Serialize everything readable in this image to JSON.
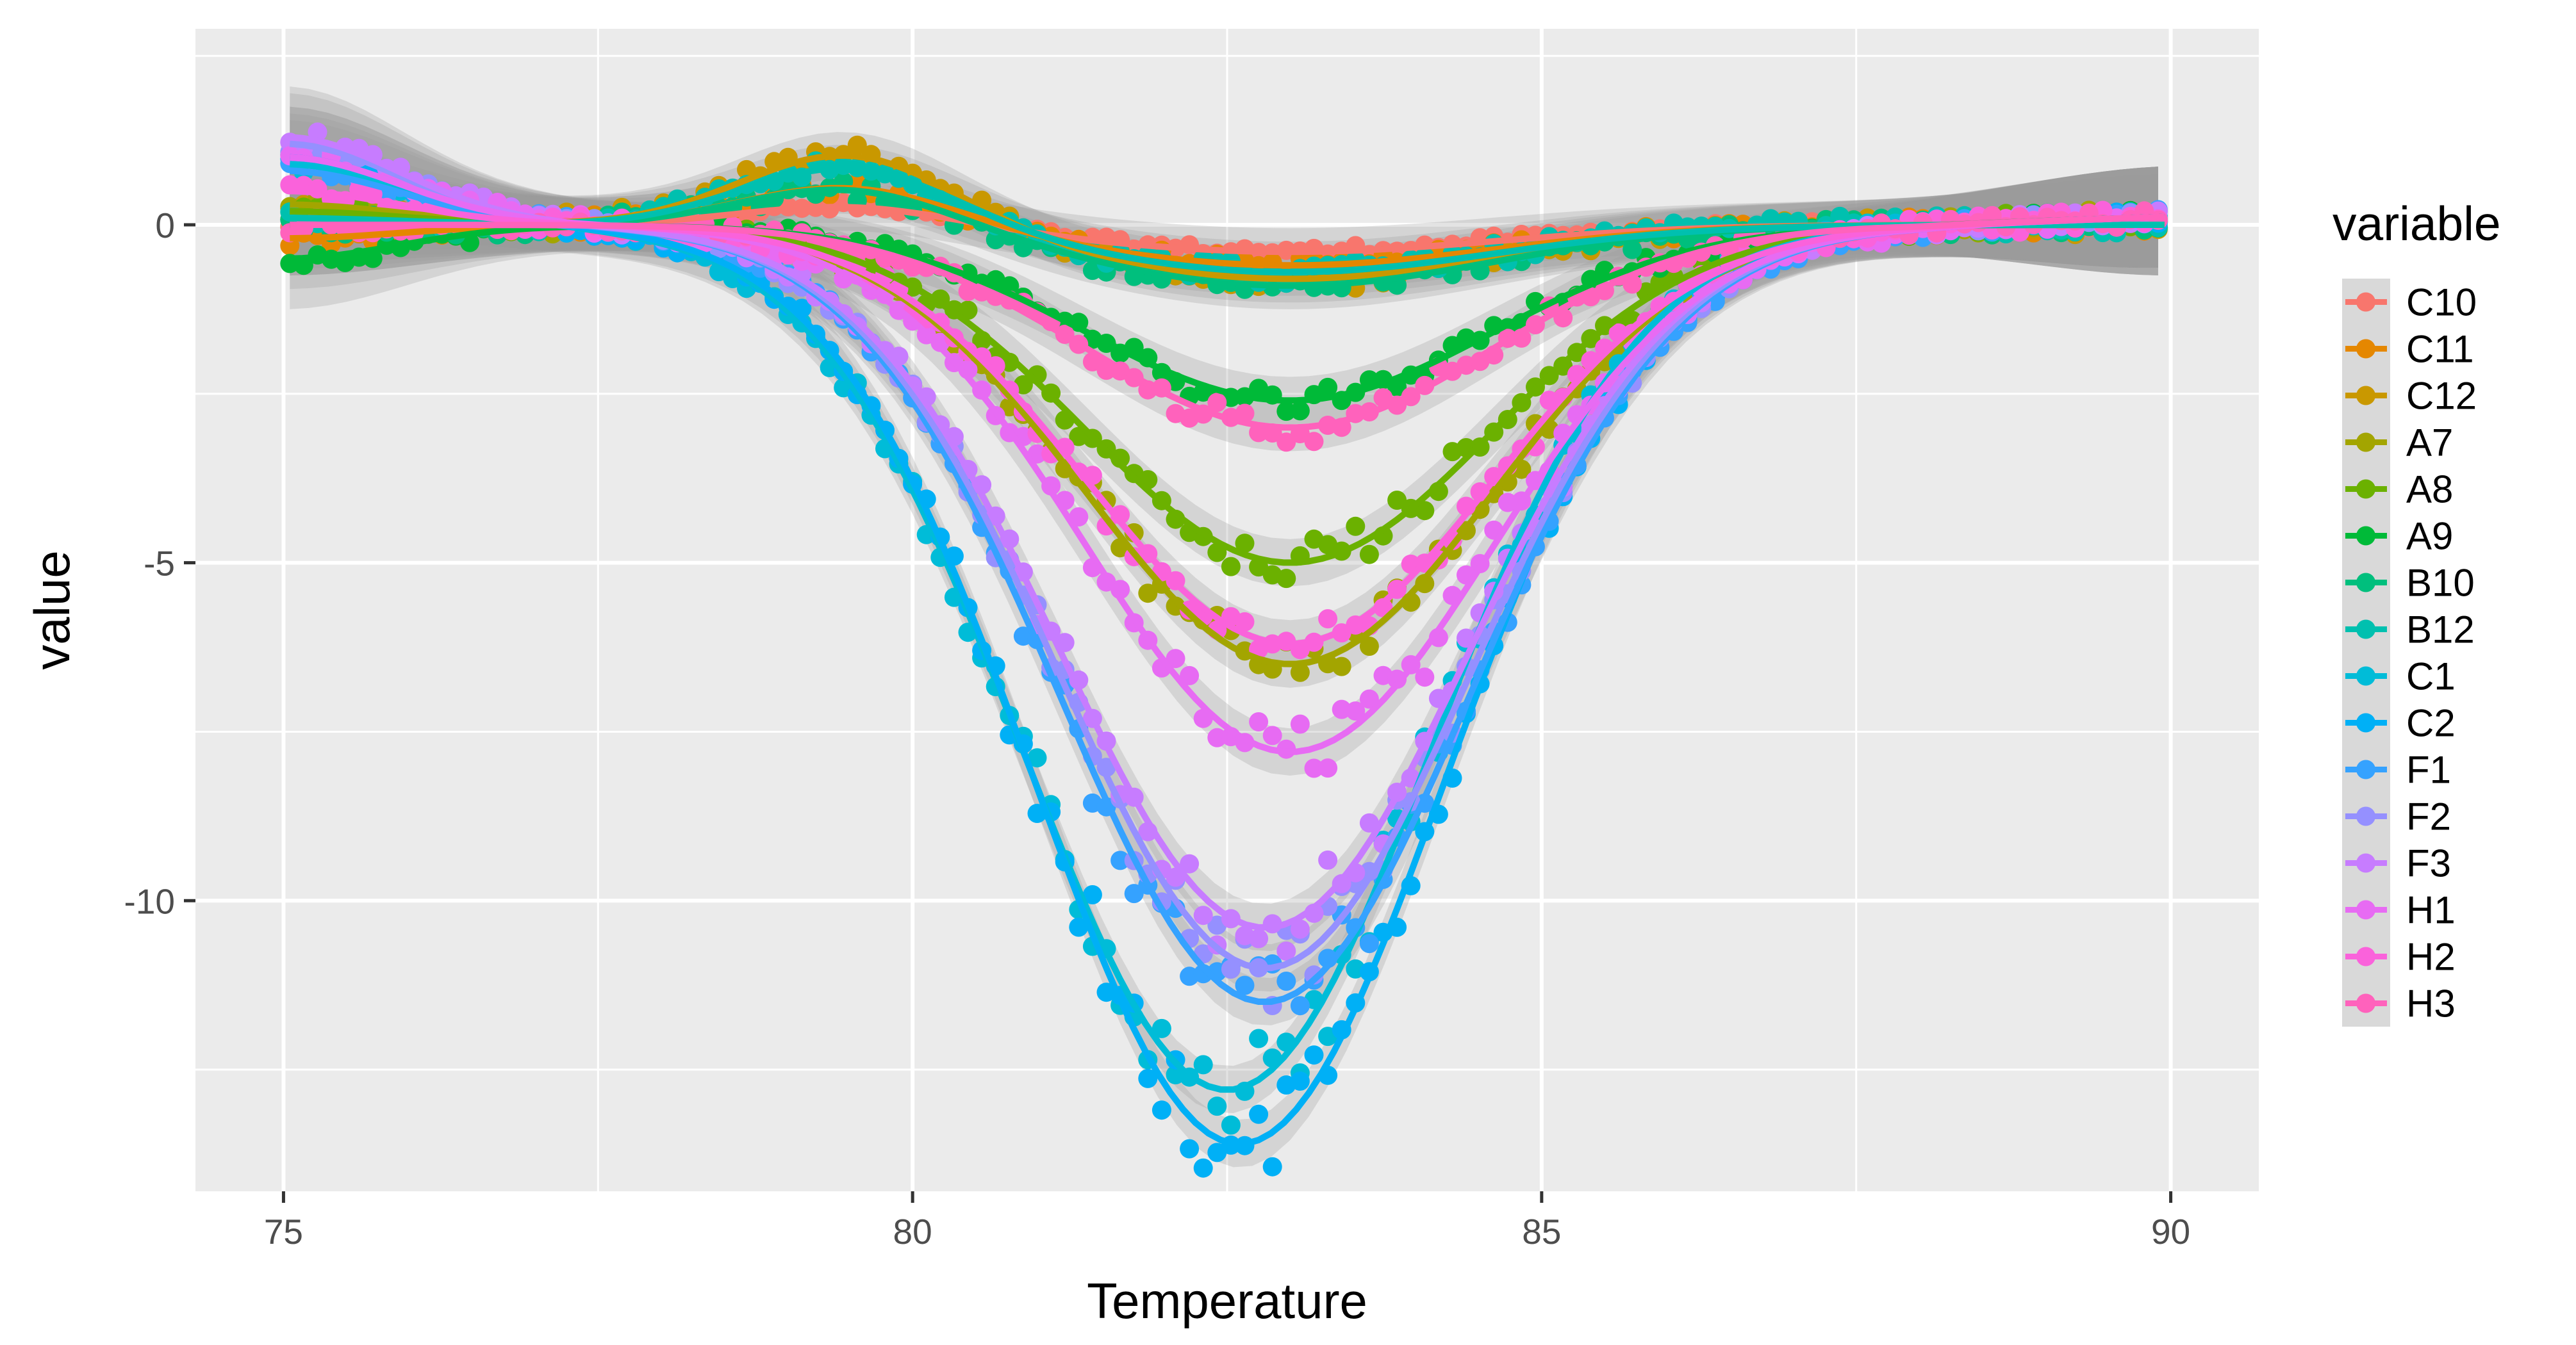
{
  "chart_data": {
    "type": "scatter",
    "title": "",
    "xlabel": "Temperature",
    "ylabel": "value",
    "xlim": [
      74.3,
      90.7
    ],
    "ylim": [
      -14.3,
      2.9
    ],
    "x_ticks": [
      "75",
      "80",
      "85",
      "90"
    ],
    "x_tick_values": [
      75,
      80,
      85,
      90
    ],
    "y_ticks": [
      "0",
      "-5",
      "-10"
    ],
    "y_tick_values": [
      0,
      -5,
      -10
    ],
    "grid": true,
    "smooth_lines": true,
    "legend": {
      "title": "variable",
      "placement": "right"
    },
    "series": [
      {
        "name": "C10",
        "color": "#F8766D",
        "min_x": 83.0,
        "min_y": -0.4,
        "start_y": 0.0,
        "early_bump": 0.3,
        "noise": 0.15
      },
      {
        "name": "C11",
        "color": "#E58700",
        "min_x": 83.0,
        "min_y": -0.6,
        "start_y": -0.2,
        "early_bump": 0.6,
        "noise": 0.25
      },
      {
        "name": "C12",
        "color": "#C99800",
        "min_x": 83.0,
        "min_y": -0.8,
        "start_y": 0.2,
        "early_bump": 1.1,
        "noise": 0.3
      },
      {
        "name": "A7",
        "color": "#A3A500",
        "min_x": 83.0,
        "min_y": -6.5,
        "start_y": 0.3,
        "early_bump": 0.0,
        "noise": 0.3
      },
      {
        "name": "A8",
        "color": "#6BB100",
        "min_x": 83.0,
        "min_y": -5.0,
        "start_y": 0.2,
        "early_bump": 0.0,
        "noise": 0.3
      },
      {
        "name": "A9",
        "color": "#00BA38",
        "min_x": 83.0,
        "min_y": -2.6,
        "start_y": -0.5,
        "early_bump": 0.0,
        "noise": 0.25
      },
      {
        "name": "B10",
        "color": "#00BF7D",
        "min_x": 83.0,
        "min_y": -0.9,
        "start_y": 0.0,
        "early_bump": 0.6,
        "noise": 0.3
      },
      {
        "name": "B12",
        "color": "#00C0AF",
        "min_x": 83.0,
        "min_y": -0.7,
        "start_y": 0.1,
        "early_bump": 0.9,
        "noise": 0.3
      },
      {
        "name": "C1",
        "color": "#00BCD8",
        "min_x": 82.5,
        "min_y": -12.8,
        "start_y": 0.9,
        "early_bump": 0.0,
        "noise": 0.25
      },
      {
        "name": "C2",
        "color": "#00B0F6",
        "min_x": 82.6,
        "min_y": -13.6,
        "start_y": 1.0,
        "early_bump": 0.0,
        "noise": 0.25
      },
      {
        "name": "F1",
        "color": "#35A2FF",
        "min_x": 82.8,
        "min_y": -11.5,
        "start_y": 0.8,
        "early_bump": 0.0,
        "noise": 0.25
      },
      {
        "name": "F2",
        "color": "#9590FF",
        "min_x": 82.8,
        "min_y": -11.0,
        "start_y": 1.2,
        "early_bump": 0.0,
        "noise": 0.25
      },
      {
        "name": "F3",
        "color": "#C77CFF",
        "min_x": 82.8,
        "min_y": -10.4,
        "start_y": 1.3,
        "early_bump": 0.0,
        "noise": 0.25
      },
      {
        "name": "H1",
        "color": "#E76BF3",
        "min_x": 83.0,
        "min_y": -7.8,
        "start_y": 1.0,
        "early_bump": 0.0,
        "noise": 0.3
      },
      {
        "name": "H2",
        "color": "#FA62DB",
        "min_x": 83.0,
        "min_y": -6.2,
        "start_y": 0.5,
        "early_bump": 0.0,
        "noise": 0.3
      },
      {
        "name": "H3",
        "color": "#FF62BC",
        "min_x": 83.0,
        "min_y": -3.0,
        "start_y": 0.0,
        "early_bump": 0.0,
        "noise": 0.25
      }
    ]
  }
}
